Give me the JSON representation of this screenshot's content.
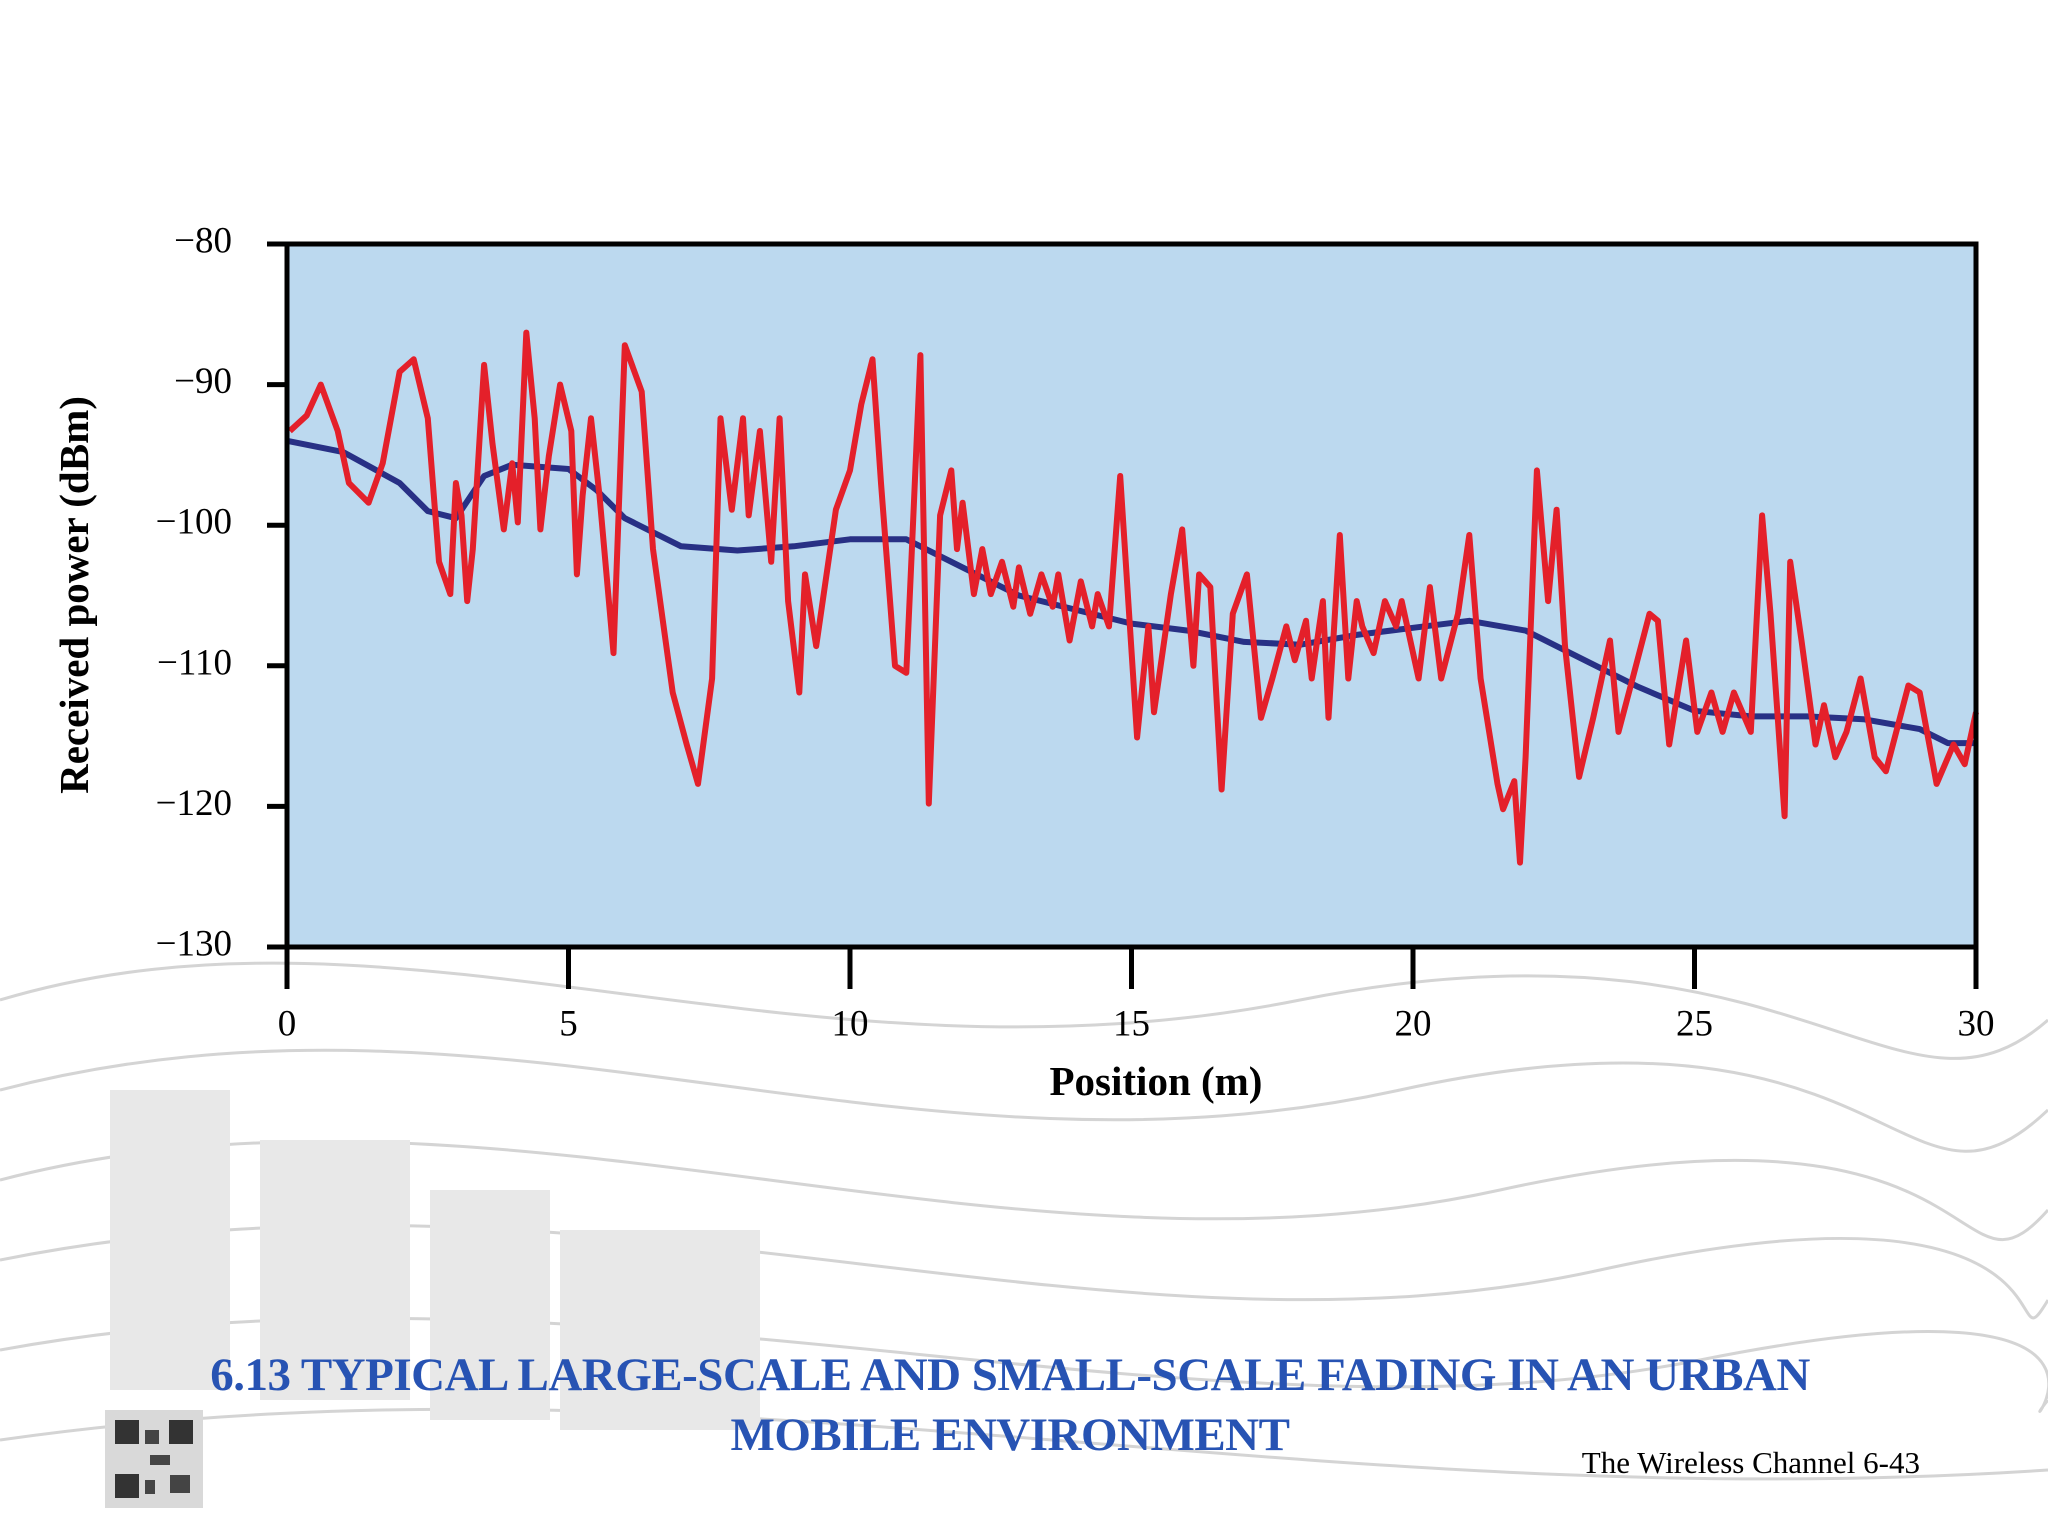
{
  "chart_data": {
    "type": "line",
    "xlabel": "Position (m)",
    "ylabel": "Received power  (dBm)",
    "xlim": [
      0,
      30
    ],
    "xticks": [
      0,
      5,
      10,
      15,
      20,
      25,
      30
    ],
    "ylim": [
      -130,
      -80
    ],
    "yticks": [
      {
        "value": -130,
        "label": "−130"
      },
      {
        "value": -120,
        "label": "−120"
      },
      {
        "value": -110,
        "label": "−110"
      },
      {
        "value": -100,
        "label": "−100"
      },
      {
        "value": -90,
        "label": "−90"
      },
      {
        "value": -80,
        "label": "−80"
      }
    ],
    "background": "#bcd9ef",
    "series": [
      {
        "color": "#283085",
        "x": [
          0,
          1,
          2,
          2.5,
          3,
          3.5,
          4,
          5,
          5.5,
          6,
          7,
          8,
          9,
          10,
          11,
          12,
          13,
          14,
          15,
          16,
          17,
          18,
          19,
          20,
          21,
          22,
          23,
          24,
          25,
          26,
          27,
          28,
          29,
          29.5,
          30
        ],
        "values": [
          -94,
          -94.8,
          -97,
          -99,
          -99.5,
          -96.5,
          -95.7,
          -96,
          -97.5,
          -99.5,
          -101.5,
          -101.8,
          -101.5,
          -101,
          -101,
          -103,
          -105,
          -106,
          -107,
          -107.5,
          -108.3,
          -108.5,
          -107.8,
          -107.3,
          -106.8,
          -107.5,
          -109.5,
          -111.5,
          -113.2,
          -113.6,
          -113.6,
          -113.8,
          -114.5,
          -115.5,
          -115.5
        ]
      },
      {
        "color": "#e4202a",
        "x": [
          0.05,
          0.35,
          0.6,
          0.9,
          1.1,
          1.45,
          1.7,
          2.0,
          2.25,
          2.5,
          2.7,
          2.9,
          3.0,
          3.1,
          3.2,
          3.3,
          3.5,
          3.65,
          3.85,
          4.0,
          4.1,
          4.25,
          4.4,
          4.5,
          4.65,
          4.85,
          5.05,
          5.15,
          5.25,
          5.4,
          5.55,
          5.8,
          6.0,
          6.3,
          6.5,
          6.85,
          7.1,
          7.3,
          7.55,
          7.7,
          7.9,
          8.1,
          8.2,
          8.4,
          8.6,
          8.75,
          8.9,
          9.1,
          9.2,
          9.4,
          9.75,
          10.0,
          10.2,
          10.4,
          10.55,
          10.8,
          11.0,
          11.1,
          11.25,
          11.4,
          11.6,
          11.8,
          11.9,
          12.0,
          12.2,
          12.35,
          12.5,
          12.7,
          12.9,
          13.0,
          13.2,
          13.4,
          13.6,
          13.7,
          13.9,
          14.1,
          14.3,
          14.4,
          14.6,
          14.8,
          15.1,
          15.3,
          15.4,
          15.7,
          15.9,
          16.1,
          16.2,
          16.4,
          16.6,
          16.8,
          17.05,
          17.3,
          17.5,
          17.75,
          17.9,
          18.1,
          18.2,
          18.4,
          18.5,
          18.7,
          18.85,
          19.0,
          19.1,
          19.3,
          19.5,
          19.7,
          19.8,
          20.1,
          20.3,
          20.5,
          20.8,
          21.0,
          21.2,
          21.5,
          21.6,
          21.8,
          21.9,
          22.0,
          22.2,
          22.4,
          22.55,
          22.7,
          22.95,
          23.2,
          23.5,
          23.65,
          23.9,
          24.2,
          24.35,
          24.55,
          24.85,
          25.05,
          25.3,
          25.5,
          25.7,
          26.0,
          26.2,
          26.35,
          26.6,
          26.7,
          26.9,
          27.15,
          27.3,
          27.5,
          27.7,
          27.95,
          28.2,
          28.4,
          28.8,
          29.0,
          29.3,
          29.6,
          29.8,
          30.0
        ],
        "values": [
          -93.3,
          -92.2,
          -90.0,
          -93.3,
          -97.0,
          -98.4,
          -95.6,
          -89.1,
          -88.2,
          -92.4,
          -102.6,
          -104.9,
          -97.0,
          -99.3,
          -105.4,
          -101.7,
          -88.6,
          -94.2,
          -100.3,
          -95.6,
          -99.8,
          -86.3,
          -92.4,
          -100.3,
          -95.1,
          -90.0,
          -93.3,
          -103.5,
          -97.9,
          -92.4,
          -97.9,
          -109.1,
          -87.2,
          -90.5,
          -101.7,
          -111.9,
          -115.6,
          -118.4,
          -110.9,
          -92.4,
          -98.9,
          -92.4,
          -99.3,
          -93.3,
          -102.6,
          -92.4,
          -105.4,
          -111.9,
          -103.5,
          -108.6,
          -98.9,
          -96.1,
          -91.4,
          -88.2,
          -97.0,
          -110.0,
          -110.5,
          -101.7,
          -87.9,
          -119.8,
          -99.3,
          -96.1,
          -101.7,
          -98.4,
          -104.9,
          -101.7,
          -104.9,
          -102.6,
          -105.8,
          -103.0,
          -106.3,
          -103.5,
          -105.8,
          -103.5,
          -108.2,
          -104.0,
          -107.2,
          -104.9,
          -107.2,
          -96.5,
          -115.1,
          -107.2,
          -113.3,
          -104.9,
          -100.3,
          -110.0,
          -103.5,
          -104.4,
          -118.8,
          -106.3,
          -103.5,
          -113.7,
          -110.9,
          -107.2,
          -109.6,
          -106.8,
          -110.9,
          -105.4,
          -113.7,
          -100.7,
          -110.9,
          -105.4,
          -107.2,
          -109.1,
          -105.4,
          -107.2,
          -105.4,
          -110.9,
          -104.4,
          -110.9,
          -106.3,
          -100.7,
          -110.9,
          -118.4,
          -120.2,
          -118.2,
          -124.0,
          -116.5,
          -96.1,
          -105.4,
          -98.9,
          -108.6,
          -117.9,
          -113.7,
          -108.2,
          -114.7,
          -110.9,
          -106.3,
          -106.8,
          -115.6,
          -108.2,
          -114.7,
          -111.9,
          -114.7,
          -111.9,
          -114.7,
          -99.3,
          -106.3,
          -120.7,
          -102.6,
          -108.2,
          -115.6,
          -112.8,
          -116.5,
          -114.7,
          -110.9,
          -116.5,
          -117.5,
          -111.4,
          -111.9,
          -118.4,
          -115.6,
          -117.0,
          -113.3
        ]
      }
    ]
  },
  "slide": {
    "caption": "6.13 TYPICAL LARGE-SCALE AND SMALL-SCALE FADING IN AN URBAN MOBILE ENVIRONMENT",
    "footer": "The Wireless Channel 6-43"
  }
}
